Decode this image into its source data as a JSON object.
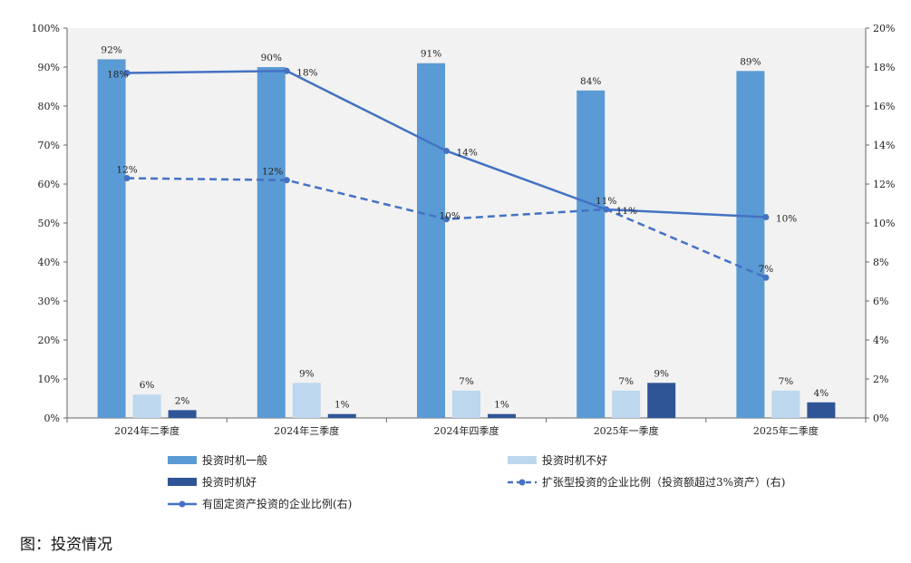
{
  "caption": "图：投资情况",
  "chart_data": {
    "type": "bar",
    "categories": [
      "2024年二季度",
      "2024年三季度",
      "2024年四季度",
      "2025年一季度",
      "2025年二季度"
    ],
    "ylim_left": [
      0,
      100
    ],
    "ylim_right": [
      0,
      20
    ],
    "yticks_left": [
      "0%",
      "10%",
      "20%",
      "30%",
      "40%",
      "50%",
      "60%",
      "70%",
      "80%",
      "90%",
      "100%"
    ],
    "yticks_right": [
      "0%",
      "2%",
      "4%",
      "6%",
      "8%",
      "10%",
      "12%",
      "14%",
      "16%",
      "18%",
      "20%"
    ],
    "grid": false,
    "legend_position": "bottom",
    "bar_series": [
      {
        "name": "投资时机一般",
        "color": "#5b9bd5",
        "values": [
          92,
          90,
          91,
          84,
          89
        ],
        "labels": [
          "92%",
          "90%",
          "91%",
          "84%",
          "89%"
        ]
      },
      {
        "name": "投资时机不好",
        "color": "#bdd7ee",
        "values": [
          6,
          9,
          7,
          7,
          7
        ],
        "labels": [
          "6%",
          "9%",
          "7%",
          "7%",
          "7%"
        ]
      },
      {
        "name": "投资时机好",
        "color": "#2f5597",
        "values": [
          2,
          1,
          1,
          9,
          4
        ],
        "labels": [
          "2%",
          "1%",
          "1%",
          "9%",
          "4%"
        ]
      }
    ],
    "line_series": [
      {
        "name": "扩张型投资的企业比例（投资额超过3%资产）(右)",
        "color": "#4472c4",
        "style": "dashed",
        "axis": "right",
        "values": [
          12.3,
          12.2,
          10.2,
          10.7,
          7.2
        ],
        "labels": [
          "12%",
          "12%",
          "10%",
          "11%",
          "7%"
        ]
      },
      {
        "name": "有固定资产投资的企业比例(右)",
        "color": "#4472c4",
        "style": "solid",
        "axis": "right",
        "values": [
          17.7,
          17.8,
          13.7,
          10.7,
          10.3
        ],
        "labels": [
          "18%",
          "18%",
          "14%",
          "11%",
          "10%"
        ]
      }
    ]
  }
}
